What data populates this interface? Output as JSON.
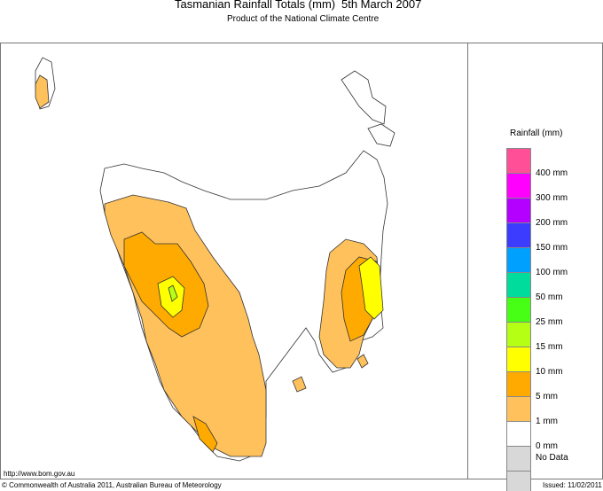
{
  "header": {
    "title": "Tasmanian Rainfall Totals (mm)",
    "date": "5th March 2007",
    "subtitle": "Product of the National Climate Centre"
  },
  "legend": {
    "title": "Rainfall (mm)",
    "items": [
      {
        "color": "#ff4f96",
        "label": ""
      },
      {
        "color": "#ff00ff",
        "label": "400 mm"
      },
      {
        "color": "#b400ff",
        "label": "300 mm"
      },
      {
        "color": "#3c3cff",
        "label": "200 mm"
      },
      {
        "color": "#00a0ff",
        "label": "150 mm"
      },
      {
        "color": "#00dc9c",
        "label": "100 mm"
      },
      {
        "color": "#46ff14",
        "label": "50 mm"
      },
      {
        "color": "#b4ff14",
        "label": "25 mm"
      },
      {
        "color": "#ffff00",
        "label": "15 mm"
      },
      {
        "color": "#ffaa00",
        "label": "10 mm"
      },
      {
        "color": "#ffc15c",
        "label": "5 mm"
      },
      {
        "color": "#ffffff",
        "label": "1 mm"
      },
      {
        "color": "#d8d8d8",
        "label": "0 mm"
      }
    ],
    "nodata_label": "No Data"
  },
  "footer": {
    "url": "http://www.bom.gov.au",
    "copyright": "© Commonwealth of Australia 2011, Australian Bureau of Meteorology",
    "issued": "Issued: 11/02/2011"
  }
}
